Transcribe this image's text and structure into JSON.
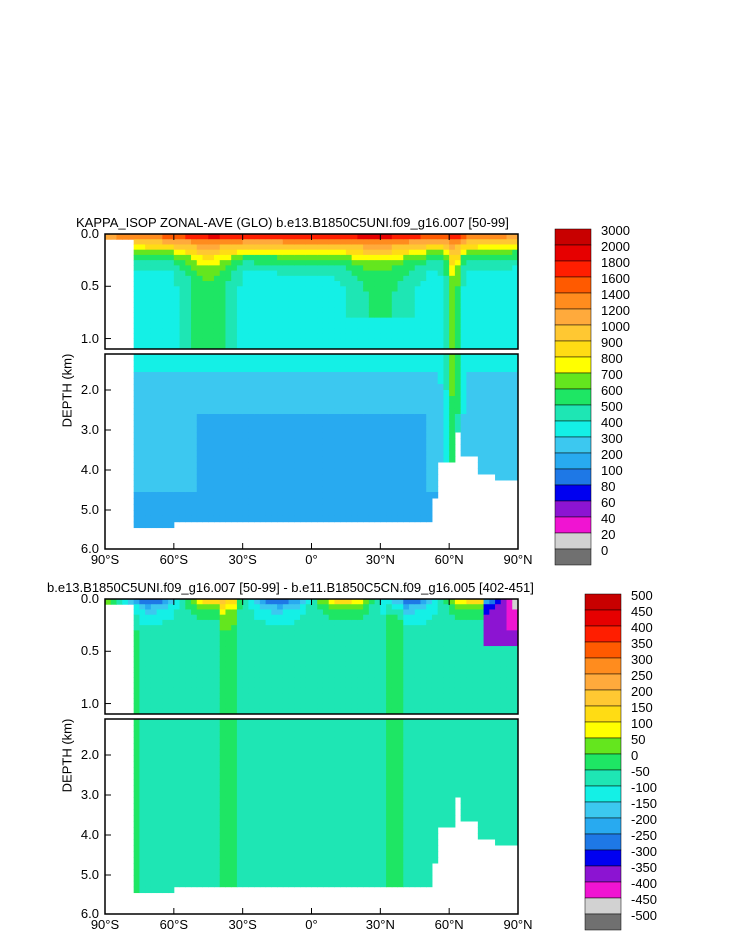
{
  "chart_data": [
    {
      "type": "heatmap",
      "title": "KAPPA_ISOP ZONAL-AVE (GLO) b.e13.B1850C5UNI.f09_g16.007 [50-99]",
      "ylabel": "DEPTH (km)",
      "xlabel": "",
      "x_ticks": [
        "90°S",
        "60°S",
        "30°S",
        "0°",
        "30°N",
        "60°N",
        "90°N"
      ],
      "y_ticks_upper": [
        "0.0",
        "0.5",
        "1.0"
      ],
      "y_ticks_lower": [
        "2.0",
        "3.0",
        "4.0",
        "5.0",
        "6.0"
      ],
      "xlim": [
        -90,
        90
      ],
      "ylim_km": [
        6.0,
        0.0
      ],
      "colorbar": {
        "labels": [
          "3000",
          "2000",
          "1800",
          "1600",
          "1400",
          "1200",
          "1000",
          "900",
          "800",
          "700",
          "600",
          "500",
          "400",
          "300",
          "200",
          "100",
          "80",
          "60",
          "40",
          "20",
          "0"
        ],
        "colors": [
          "#c80000",
          "#e60000",
          "#ff1e00",
          "#ff5a00",
          "#ff8c1e",
          "#ffaa3c",
          "#ffc832",
          "#ffdc14",
          "#ffff00",
          "#64e61e",
          "#1ee664",
          "#1ee6b4",
          "#14f0e6",
          "#3cc8f0",
          "#28aaf0",
          "#1e78e6",
          "#0000f0",
          "#8c14d2",
          "#f014d2",
          "#d2d2d2",
          "#707070"
        ]
      }
    },
    {
      "type": "heatmap",
      "title": "b.e13.B1850C5UNI.f09_g16.007 [50-99] - b.e11.B1850C5CN.f09_g16.005 [402-451]",
      "ylabel": "DEPTH (km)",
      "xlabel": "",
      "x_ticks": [
        "90°S",
        "60°S",
        "30°S",
        "0°",
        "30°N",
        "60°N",
        "90°N"
      ],
      "y_ticks_upper": [
        "0.0",
        "0.5",
        "1.0"
      ],
      "y_ticks_lower": [
        "2.0",
        "3.0",
        "4.0",
        "5.0",
        "6.0"
      ],
      "xlim": [
        -90,
        90
      ],
      "ylim_km": [
        6.0,
        0.0
      ],
      "colorbar": {
        "labels": [
          "500",
          "450",
          "400",
          "350",
          "300",
          "250",
          "200",
          "150",
          "100",
          "50",
          "0",
          "-50",
          "-100",
          "-150",
          "-200",
          "-250",
          "-300",
          "-350",
          "-400",
          "-450",
          "-500"
        ],
        "colors": [
          "#c80000",
          "#e60000",
          "#ff1e00",
          "#ff5a00",
          "#ff8c1e",
          "#ffaa3c",
          "#ffc832",
          "#ffdc14",
          "#ffff00",
          "#64e61e",
          "#1ee664",
          "#1ee6b4",
          "#14f0e6",
          "#3cc8f0",
          "#28aaf0",
          "#1e78e6",
          "#0000f0",
          "#8c14d2",
          "#f014d2",
          "#d2d2d2",
          "#707070"
        ]
      }
    }
  ]
}
